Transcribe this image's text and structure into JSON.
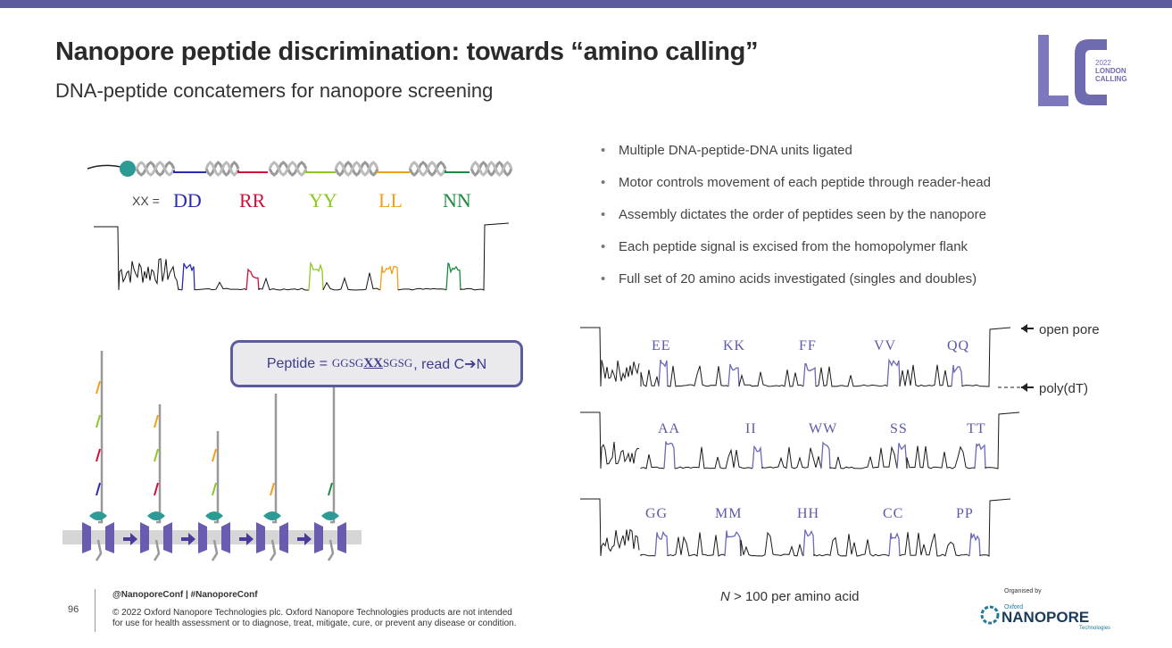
{
  "slide": {
    "title": "Nanopore peptide discrimination: towards “amino calling”",
    "subtitle": "DNA-peptide concatemers for nanopore screening",
    "accent_color": "#5b5b9e",
    "trace_color": "#1a1a1a",
    "highlight_trace_color": "#6a6ab8"
  },
  "logo_lc": {
    "letters": "LC",
    "year": "2022",
    "line1": "LONDON",
    "line2": "CALLING",
    "color": "#6f6bb0"
  },
  "concatemer": {
    "xx_prefix": "XX =",
    "peptides": [
      {
        "label": "DD",
        "color": "#2b2bb0"
      },
      {
        "label": "RR",
        "color": "#d0103a"
      },
      {
        "label": "YY",
        "color": "#8cc820"
      },
      {
        "label": "LL",
        "color": "#f0a018"
      },
      {
        "label": "NN",
        "color": "#1a8a40"
      }
    ]
  },
  "bullets": [
    "Multiple DNA-peptide-DNA units ligated",
    "Motor controls movement of each peptide through reader-head",
    "Assembly dictates the order of peptides seen by the nanopore",
    "Each peptide signal is excised from the homopolymer flank",
    "Full set of 20 amino acids investigated (singles and doubles)"
  ],
  "peptide_box": {
    "prefix": "Peptide =",
    "seq_start": "GGSG",
    "seq_xx": "XX",
    "seq_end": "SGSG",
    "suffix": ", read C➔N"
  },
  "traces": {
    "rows": [
      [
        "EE",
        "KK",
        "FF",
        "VV",
        "QQ"
      ],
      [
        "AA",
        "II",
        "WW",
        "SS",
        "TT"
      ],
      [
        "GG",
        "MM",
        "HH",
        "CC",
        "PP"
      ]
    ],
    "open_pore_label": "open pore",
    "polydt_label": "poly(dT)"
  },
  "n_note": {
    "italic": "N",
    "rest": " > 100 per amino acid"
  },
  "footer": {
    "page_number": "96",
    "handle": "@NanoporeConf | #NanoporeConf",
    "copyright_line1": "© 2022 Oxford Nanopore Technologies plc. Oxford Nanopore Technologies products are not intended",
    "copyright_line2": "for use for health assessment or to diagnose, treat, mitigate, cure, or prevent any disease or condition.",
    "organised_by": "Organised by",
    "org_small": "Oxford",
    "org_name": "NANOPORE",
    "org_sub": "Technologies"
  }
}
